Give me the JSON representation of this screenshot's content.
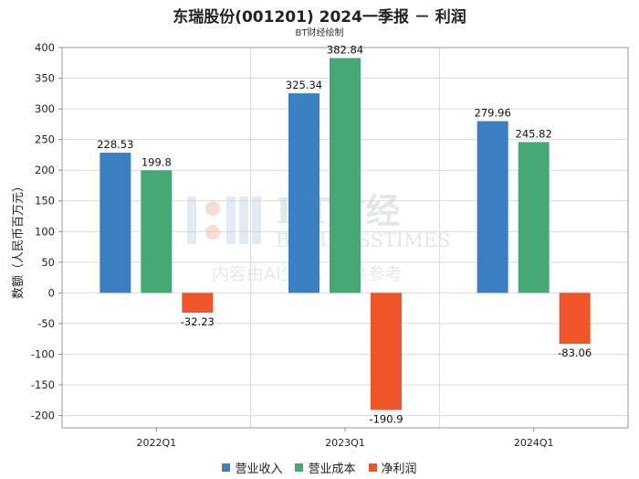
{
  "title": "东瑞股份(001201) 2024一季报 － 利润",
  "subtitle": "BT财经绘制",
  "watermark": {
    "line1": "BT财经",
    "line2": "BUSINESSTIMES",
    "line3": "内容由AI生成，仅供参考"
  },
  "colors": {
    "营业收入": "#3a7fc1",
    "营业成本": "#45a875",
    "净利润": "#f0552a",
    "grid": "#d9d9d9"
  },
  "chart_data": {
    "type": "bar",
    "ylabel": "数额（人民币百万元）",
    "ylim": [
      -220,
      400
    ],
    "yticks": [
      400,
      350,
      300,
      250,
      200,
      150,
      100,
      50,
      0,
      -50,
      -100,
      -150,
      -200
    ],
    "categories": [
      "2022Q1",
      "2023Q1",
      "2024Q1"
    ],
    "series": [
      {
        "name": "营业收入",
        "values": [
          228.53,
          325.34,
          279.96
        ],
        "labels": [
          "228.53",
          "325.34",
          "279.96"
        ]
      },
      {
        "name": "营业成本",
        "values": [
          199.8,
          382.84,
          245.82
        ],
        "labels": [
          "199.8",
          "382.84",
          "245.82"
        ]
      },
      {
        "name": "净利润",
        "values": [
          -32.23,
          -190.9,
          -83.06
        ],
        "labels": [
          "-32.23",
          "-190.9",
          "-83.06"
        ]
      }
    ],
    "grid": true,
    "legend": "bottom-center"
  }
}
